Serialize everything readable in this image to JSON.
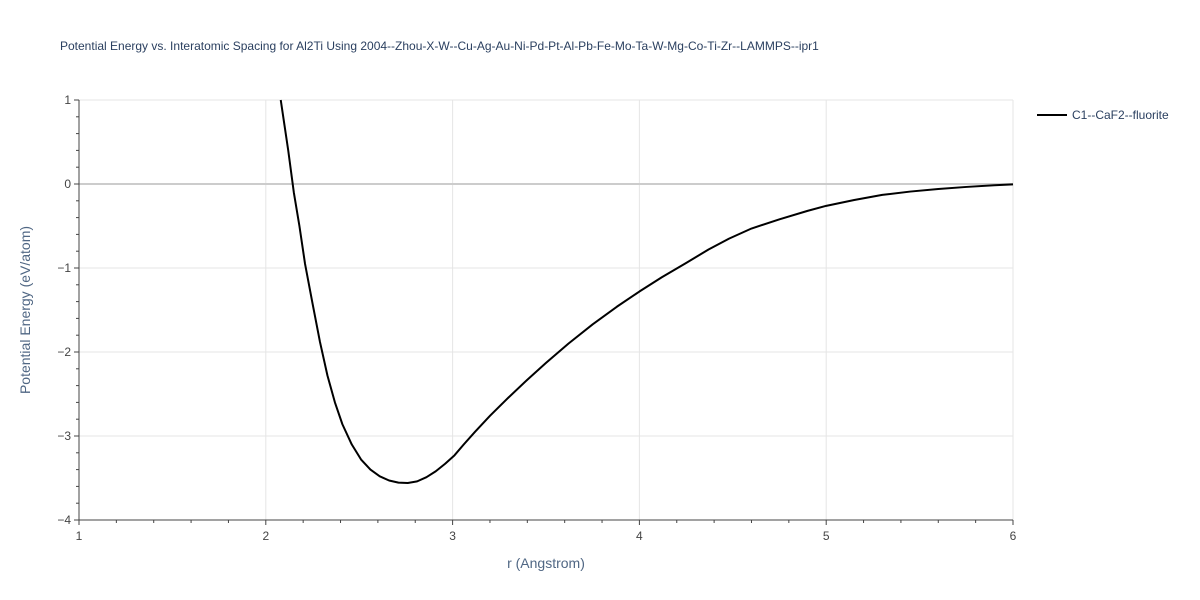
{
  "chart_data": {
    "type": "line",
    "title": "Potential Energy vs. Interatomic Spacing for Al2Ti Using 2004--Zhou-X-W--Cu-Ag-Au-Ni-Pd-Pt-Al-Pb-Fe-Mo-Ta-W-Mg-Co-Ti-Zr--LAMMPS--ipr1",
    "xlabel": "r (Angstrom)",
    "ylabel": "Potential Energy (eV/atom)",
    "xlim": [
      1,
      6
    ],
    "ylim": [
      -4,
      1
    ],
    "x_ticks": [
      1,
      2,
      3,
      4,
      5,
      6
    ],
    "x_tick_labels": [
      "1",
      "2",
      "3",
      "4",
      "5",
      "6"
    ],
    "y_ticks": [
      1,
      0,
      -1,
      -2,
      -3,
      -4
    ],
    "y_tick_labels": [
      "1",
      "0",
      "−1",
      "−2",
      "−3",
      "−4"
    ],
    "grid": true,
    "legend_position": "top-right",
    "series": [
      {
        "name": "C1--CaF2--fluorite",
        "color": "#000000",
        "x": [
          2.08,
          2.1,
          2.12,
          2.15,
          2.18,
          2.21,
          2.25,
          2.29,
          2.33,
          2.37,
          2.41,
          2.46,
          2.51,
          2.56,
          2.61,
          2.66,
          2.71,
          2.76,
          2.81,
          2.86,
          2.91,
          2.96,
          3.01,
          3.06,
          3.12,
          3.2,
          3.3,
          3.4,
          3.5,
          3.62,
          3.75,
          3.88,
          4.0,
          4.12,
          4.25,
          4.37,
          4.48,
          4.6,
          4.75,
          4.9,
          5.0,
          5.15,
          5.3,
          5.45,
          5.6,
          5.75,
          5.9,
          6.0
        ],
        "y": [
          1.0,
          0.7,
          0.4,
          -0.1,
          -0.5,
          -0.95,
          -1.42,
          -1.88,
          -2.28,
          -2.6,
          -2.86,
          -3.1,
          -3.28,
          -3.4,
          -3.48,
          -3.53,
          -3.555,
          -3.56,
          -3.54,
          -3.49,
          -3.42,
          -3.33,
          -3.23,
          -3.1,
          -2.95,
          -2.76,
          -2.54,
          -2.33,
          -2.13,
          -1.9,
          -1.67,
          -1.46,
          -1.28,
          -1.11,
          -0.94,
          -0.78,
          -0.65,
          -0.53,
          -0.42,
          -0.32,
          -0.26,
          -0.19,
          -0.13,
          -0.09,
          -0.06,
          -0.035,
          -0.015,
          -0.005
        ]
      }
    ]
  }
}
